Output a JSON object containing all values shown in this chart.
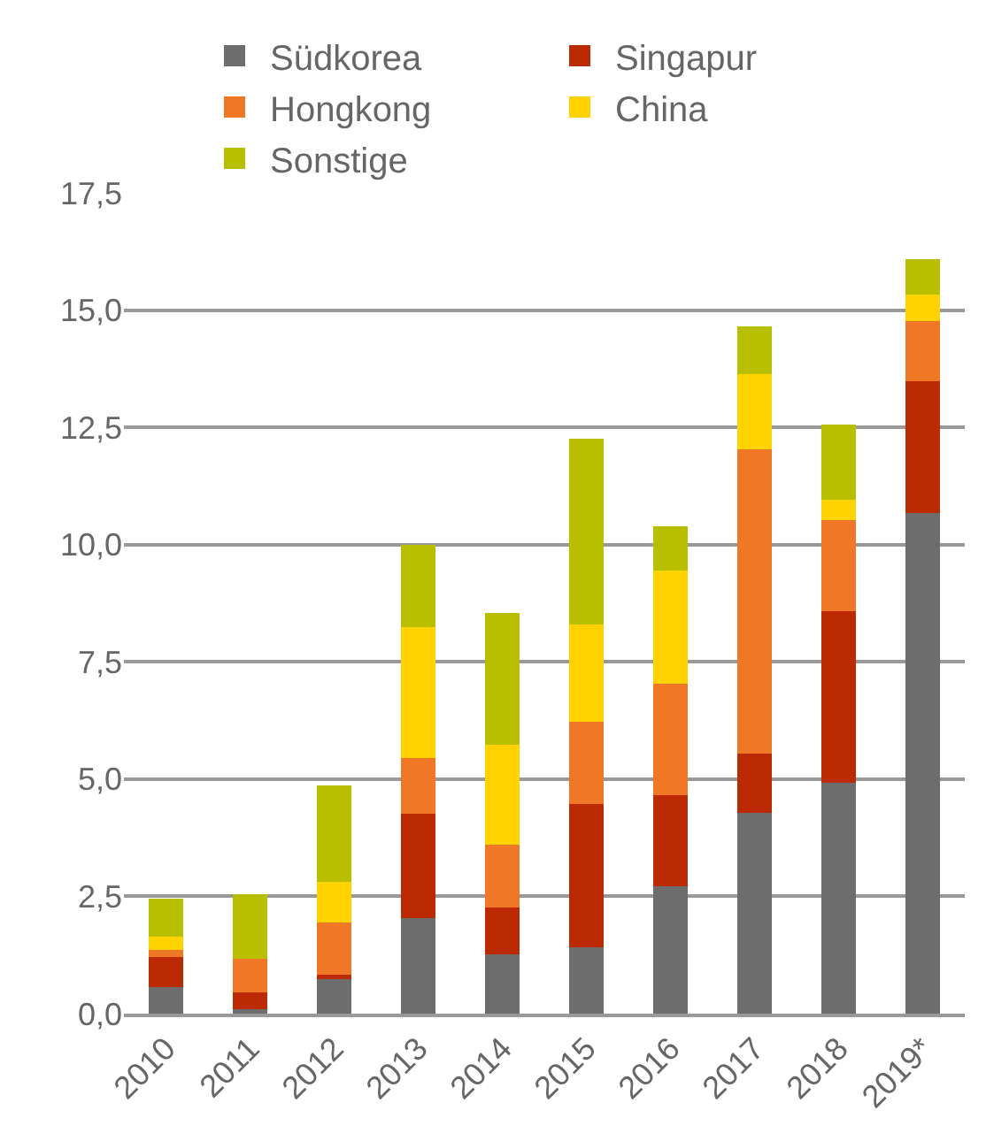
{
  "chart_data": {
    "type": "bar",
    "stacked": true,
    "categories": [
      "2010",
      "2011",
      "2012",
      "2013",
      "2014",
      "2015",
      "2016",
      "2017",
      "2018",
      "2019*"
    ],
    "series": [
      {
        "name": "Südkorea",
        "color": "#6d6d6d",
        "values": [
          0.57,
          0.1,
          0.74,
          2.04,
          1.27,
          1.42,
          2.72,
          4.28,
          4.92,
          10.67
        ]
      },
      {
        "name": "Singapur",
        "color": "#bc2a03",
        "values": [
          0.63,
          0.35,
          0.09,
          2.22,
          1.0,
          3.05,
          1.93,
          1.27,
          3.66,
          2.82
        ]
      },
      {
        "name": "Hongkong",
        "color": "#ef7726",
        "values": [
          0.15,
          0.72,
          1.11,
          1.19,
          1.33,
          1.75,
          2.38,
          6.49,
          1.95,
          1.28
        ]
      },
      {
        "name": "China",
        "color": "#ffd200",
        "values": [
          0.3,
          0,
          0.87,
          2.8,
          2.13,
          2.07,
          2.41,
          1.59,
          0.42,
          0.56
        ]
      },
      {
        "name": "Sonstige",
        "color": "#b7bf00",
        "values": [
          0.8,
          1.38,
          2.05,
          1.75,
          2.82,
          3.96,
          0.95,
          1.02,
          1.61,
          0.75
        ]
      }
    ],
    "ylim": [
      0,
      17.5
    ],
    "yticks": [
      {
        "value": 0,
        "label": "0,0"
      },
      {
        "value": 2.5,
        "label": "2,5"
      },
      {
        "value": 5,
        "label": "5,0"
      },
      {
        "value": 7.5,
        "label": "7,5"
      },
      {
        "value": 10,
        "label": "10,0"
      },
      {
        "value": 12.5,
        "label": "12,5"
      },
      {
        "value": 15,
        "label": "15,0"
      },
      {
        "value": 17.5,
        "label": "17,5"
      }
    ],
    "grid": "y",
    "legend": "top"
  }
}
